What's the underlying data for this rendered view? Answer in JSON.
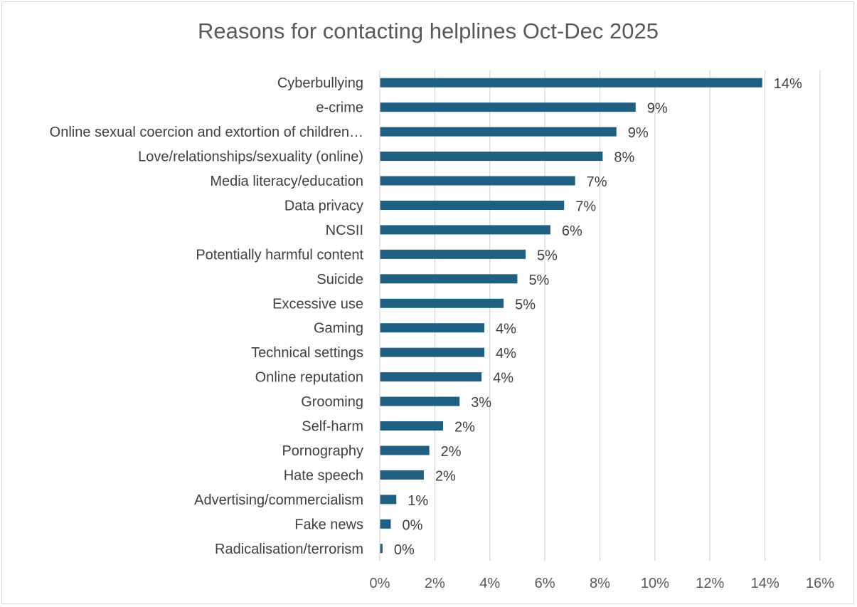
{
  "chart_data": {
    "type": "bar",
    "orientation": "horizontal",
    "title": "Reasons for contacting helplines Oct-Dec 2025",
    "xlabel": "",
    "ylabel": "",
    "xlim": [
      0,
      16
    ],
    "x_ticks": [
      "0%",
      "2%",
      "4%",
      "6%",
      "8%",
      "10%",
      "12%",
      "14%",
      "16%"
    ],
    "grid": true,
    "bar_color": "#1f5f82",
    "categories": [
      "Cyberbullying",
      "e-crime",
      "Online sexual coercion and extortion of children…",
      "Love/relationships/sexuality (online)",
      "Media literacy/education",
      "Data privacy",
      "NCSII",
      "Potentially harmful content",
      "Suicide",
      "Excessive use",
      "Gaming",
      "Technical settings",
      "Online reputation",
      "Grooming",
      "Self-harm",
      "Pornography",
      "Hate speech",
      "Advertising/commercialism",
      "Fake news",
      "Radicalisation/terrorism"
    ],
    "values": [
      13.9,
      9.3,
      8.6,
      8.1,
      7.1,
      6.7,
      6.2,
      5.3,
      5.0,
      4.5,
      3.8,
      3.8,
      3.7,
      2.9,
      2.3,
      1.8,
      1.6,
      0.6,
      0.4,
      0.1
    ],
    "labels": [
      "14%",
      "9%",
      "9%",
      "8%",
      "7%",
      "7%",
      "6%",
      "5%",
      "5%",
      "5%",
      "4%",
      "4%",
      "4%",
      "3%",
      "2%",
      "2%",
      "2%",
      "1%",
      "0%",
      "0%"
    ]
  }
}
